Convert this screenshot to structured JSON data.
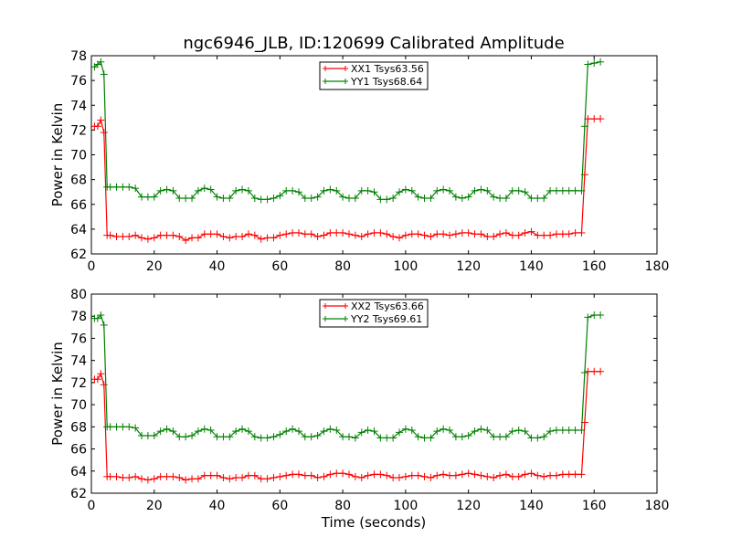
{
  "title": "ngc6946_JLB, ID:120699 Calibrated Amplitude",
  "xlabel": "Time (seconds)",
  "chart_data": [
    {
      "type": "line",
      "ylabel": "Power in Kelvin",
      "xlim": [
        0,
        180
      ],
      "ylim": [
        62,
        78
      ],
      "xticks": [
        "0",
        "20",
        "40",
        "60",
        "80",
        "100",
        "120",
        "140",
        "160",
        "180"
      ],
      "yticks": [
        "62",
        "64",
        "66",
        "68",
        "70",
        "72",
        "74",
        "76",
        "78"
      ],
      "legend_position": "upper-center",
      "series": [
        {
          "name": "XX1 Tsys63.56",
          "color": "#ff0000",
          "x": [
            1,
            2,
            3,
            4,
            5,
            6,
            8,
            10,
            12,
            14,
            16,
            18,
            20,
            22,
            24,
            26,
            28,
            30,
            32,
            34,
            36,
            38,
            40,
            42,
            44,
            46,
            48,
            50,
            52,
            54,
            56,
            58,
            60,
            62,
            64,
            66,
            68,
            70,
            72,
            74,
            76,
            78,
            80,
            82,
            84,
            86,
            88,
            90,
            92,
            94,
            96,
            98,
            100,
            102,
            104,
            106,
            108,
            110,
            112,
            114,
            116,
            118,
            120,
            122,
            124,
            126,
            128,
            130,
            132,
            134,
            136,
            138,
            140,
            142,
            144,
            146,
            148,
            150,
            152,
            154,
            156,
            157,
            158,
            160,
            162
          ],
          "y": [
            72.3,
            72.3,
            72.8,
            71.8,
            63.5,
            63.5,
            63.4,
            63.4,
            63.4,
            63.5,
            63.3,
            63.2,
            63.3,
            63.5,
            63.5,
            63.5,
            63.4,
            63.1,
            63.3,
            63.3,
            63.6,
            63.6,
            63.6,
            63.4,
            63.3,
            63.4,
            63.4,
            63.6,
            63.5,
            63.2,
            63.3,
            63.3,
            63.5,
            63.6,
            63.7,
            63.7,
            63.6,
            63.6,
            63.4,
            63.5,
            63.7,
            63.7,
            63.7,
            63.6,
            63.5,
            63.4,
            63.6,
            63.7,
            63.7,
            63.6,
            63.4,
            63.3,
            63.5,
            63.6,
            63.6,
            63.5,
            63.4,
            63.6,
            63.6,
            63.5,
            63.6,
            63.7,
            63.7,
            63.6,
            63.6,
            63.4,
            63.4,
            63.6,
            63.7,
            63.5,
            63.5,
            63.7,
            63.8,
            63.5,
            63.5,
            63.5,
            63.6,
            63.6,
            63.6,
            63.7,
            63.7,
            68.4,
            72.9,
            72.9,
            72.9
          ]
        },
        {
          "name": "YY1 Tsys68.64",
          "color": "#008000",
          "x": [
            1,
            2,
            3,
            4,
            5,
            6,
            8,
            10,
            12,
            14,
            16,
            18,
            20,
            22,
            24,
            26,
            28,
            30,
            32,
            34,
            36,
            38,
            40,
            42,
            44,
            46,
            48,
            50,
            52,
            54,
            56,
            58,
            60,
            62,
            64,
            66,
            68,
            70,
            72,
            74,
            76,
            78,
            80,
            82,
            84,
            86,
            88,
            90,
            92,
            94,
            96,
            98,
            100,
            102,
            104,
            106,
            108,
            110,
            112,
            114,
            116,
            118,
            120,
            122,
            124,
            126,
            128,
            130,
            132,
            134,
            136,
            138,
            140,
            142,
            144,
            146,
            148,
            150,
            152,
            154,
            156,
            157,
            158,
            160,
            162
          ],
          "y": [
            77.1,
            77.3,
            77.5,
            76.5,
            67.4,
            67.4,
            67.4,
            67.4,
            67.4,
            67.3,
            66.6,
            66.6,
            66.6,
            67.1,
            67.2,
            67.1,
            66.5,
            66.5,
            66.5,
            67.1,
            67.3,
            67.2,
            66.6,
            66.5,
            66.5,
            67.1,
            67.2,
            67.1,
            66.5,
            66.4,
            66.4,
            66.5,
            66.7,
            67.1,
            67.1,
            67.0,
            66.5,
            66.5,
            66.6,
            67.1,
            67.2,
            67.1,
            66.6,
            66.5,
            66.5,
            67.1,
            67.1,
            67.0,
            66.4,
            66.4,
            66.5,
            67.0,
            67.2,
            67.1,
            66.6,
            66.5,
            66.5,
            67.1,
            67.2,
            67.1,
            66.6,
            66.5,
            66.6,
            67.1,
            67.2,
            67.1,
            66.6,
            66.5,
            66.5,
            67.1,
            67.1,
            67.0,
            66.5,
            66.5,
            66.5,
            67.1,
            67.1,
            67.1,
            67.1,
            67.1,
            67.1,
            72.3,
            77.3,
            77.4,
            77.5
          ]
        }
      ]
    },
    {
      "type": "line",
      "ylabel": "Power in Kelvin",
      "xlim": [
        0,
        180
      ],
      "ylim": [
        62,
        80
      ],
      "xticks": [
        "0",
        "20",
        "40",
        "60",
        "80",
        "100",
        "120",
        "140",
        "160",
        "180"
      ],
      "yticks": [
        "62",
        "64",
        "66",
        "68",
        "70",
        "72",
        "74",
        "76",
        "78",
        "80"
      ],
      "legend_position": "upper-center",
      "series": [
        {
          "name": "XX2 Tsys63.66",
          "color": "#ff0000",
          "x": [
            1,
            2,
            3,
            4,
            5,
            6,
            8,
            10,
            12,
            14,
            16,
            18,
            20,
            22,
            24,
            26,
            28,
            30,
            32,
            34,
            36,
            38,
            40,
            42,
            44,
            46,
            48,
            50,
            52,
            54,
            56,
            58,
            60,
            62,
            64,
            66,
            68,
            70,
            72,
            74,
            76,
            78,
            80,
            82,
            84,
            86,
            88,
            90,
            92,
            94,
            96,
            98,
            100,
            102,
            104,
            106,
            108,
            110,
            112,
            114,
            116,
            118,
            120,
            122,
            124,
            126,
            128,
            130,
            132,
            134,
            136,
            138,
            140,
            142,
            144,
            146,
            148,
            150,
            152,
            154,
            156,
            157,
            158,
            160,
            162
          ],
          "y": [
            72.3,
            72.3,
            72.8,
            71.8,
            63.5,
            63.5,
            63.5,
            63.4,
            63.4,
            63.5,
            63.3,
            63.2,
            63.3,
            63.5,
            63.5,
            63.5,
            63.4,
            63.2,
            63.3,
            63.3,
            63.6,
            63.6,
            63.6,
            63.4,
            63.3,
            63.4,
            63.4,
            63.6,
            63.6,
            63.3,
            63.3,
            63.4,
            63.5,
            63.6,
            63.7,
            63.7,
            63.6,
            63.6,
            63.4,
            63.5,
            63.7,
            63.8,
            63.8,
            63.7,
            63.5,
            63.4,
            63.6,
            63.7,
            63.7,
            63.6,
            63.4,
            63.4,
            63.5,
            63.6,
            63.6,
            63.5,
            63.4,
            63.6,
            63.7,
            63.6,
            63.6,
            63.7,
            63.8,
            63.7,
            63.6,
            63.5,
            63.4,
            63.6,
            63.7,
            63.5,
            63.5,
            63.7,
            63.8,
            63.6,
            63.5,
            63.6,
            63.6,
            63.7,
            63.7,
            63.7,
            63.7,
            68.4,
            73.0,
            73.0,
            73.0
          ]
        },
        {
          "name": "YY2 Tsys69.61",
          "color": "#008000",
          "x": [
            1,
            2,
            3,
            4,
            5,
            6,
            8,
            10,
            12,
            14,
            16,
            18,
            20,
            22,
            24,
            26,
            28,
            30,
            32,
            34,
            36,
            38,
            40,
            42,
            44,
            46,
            48,
            50,
            52,
            54,
            56,
            58,
            60,
            62,
            64,
            66,
            68,
            70,
            72,
            74,
            76,
            78,
            80,
            82,
            84,
            86,
            88,
            90,
            92,
            94,
            96,
            98,
            100,
            102,
            104,
            106,
            108,
            110,
            112,
            114,
            116,
            118,
            120,
            122,
            124,
            126,
            128,
            130,
            132,
            134,
            136,
            138,
            140,
            142,
            144,
            146,
            148,
            150,
            152,
            154,
            156,
            157,
            158,
            160,
            162
          ],
          "y": [
            77.8,
            77.8,
            78.1,
            77.2,
            68.0,
            68.0,
            68.0,
            68.0,
            68.0,
            67.9,
            67.2,
            67.2,
            67.2,
            67.6,
            67.8,
            67.6,
            67.1,
            67.1,
            67.2,
            67.6,
            67.8,
            67.7,
            67.1,
            67.1,
            67.1,
            67.6,
            67.8,
            67.6,
            67.1,
            67.0,
            67.0,
            67.1,
            67.3,
            67.6,
            67.8,
            67.6,
            67.1,
            67.1,
            67.2,
            67.6,
            67.8,
            67.7,
            67.1,
            67.1,
            67.0,
            67.5,
            67.7,
            67.6,
            67.0,
            67.0,
            67.0,
            67.5,
            67.8,
            67.7,
            67.1,
            67.0,
            67.0,
            67.6,
            67.8,
            67.7,
            67.1,
            67.1,
            67.2,
            67.6,
            67.8,
            67.7,
            67.1,
            67.1,
            67.1,
            67.6,
            67.7,
            67.6,
            67.0,
            67.0,
            67.1,
            67.6,
            67.7,
            67.7,
            67.7,
            67.7,
            67.7,
            72.9,
            77.9,
            78.1,
            78.1
          ]
        }
      ]
    }
  ]
}
